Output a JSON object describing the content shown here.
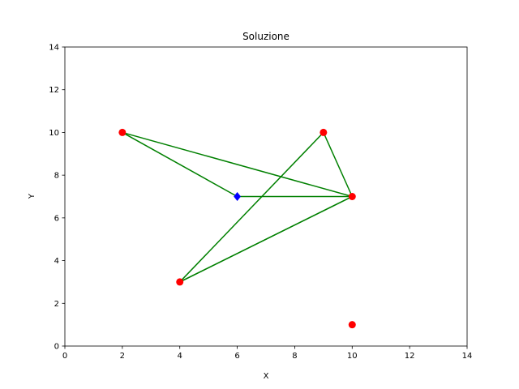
{
  "chart_data": {
    "type": "scatter",
    "title": "Soluzione",
    "xlabel": "X",
    "ylabel": "Y",
    "xlim": [
      0,
      14
    ],
    "ylim": [
      0,
      14
    ],
    "xticks": [
      0,
      2,
      4,
      6,
      8,
      10,
      12,
      14
    ],
    "yticks": [
      0,
      2,
      4,
      6,
      8,
      10,
      12,
      14
    ],
    "grid": false,
    "series": [
      {
        "marker": "circle",
        "color": "#ff0000",
        "points": [
          [
            2,
            10
          ],
          [
            9,
            10
          ],
          [
            10,
            7
          ],
          [
            4,
            3
          ],
          [
            10,
            1
          ]
        ]
      },
      {
        "marker": "diamond",
        "color": "#0000ff",
        "points": [
          [
            6,
            7
          ]
        ]
      }
    ],
    "segments": {
      "color": "#008000",
      "lines": [
        [
          [
            2,
            10
          ],
          [
            6,
            7
          ]
        ],
        [
          [
            2,
            10
          ],
          [
            10,
            7
          ]
        ],
        [
          [
            6,
            7
          ],
          [
            10,
            7
          ]
        ],
        [
          [
            9,
            10
          ],
          [
            10,
            7
          ]
        ],
        [
          [
            9,
            10
          ],
          [
            4,
            3
          ]
        ],
        [
          [
            4,
            3
          ],
          [
            10,
            7
          ]
        ],
        [
          [
            4,
            3
          ],
          [
            10,
            7
          ]
        ]
      ]
    }
  }
}
